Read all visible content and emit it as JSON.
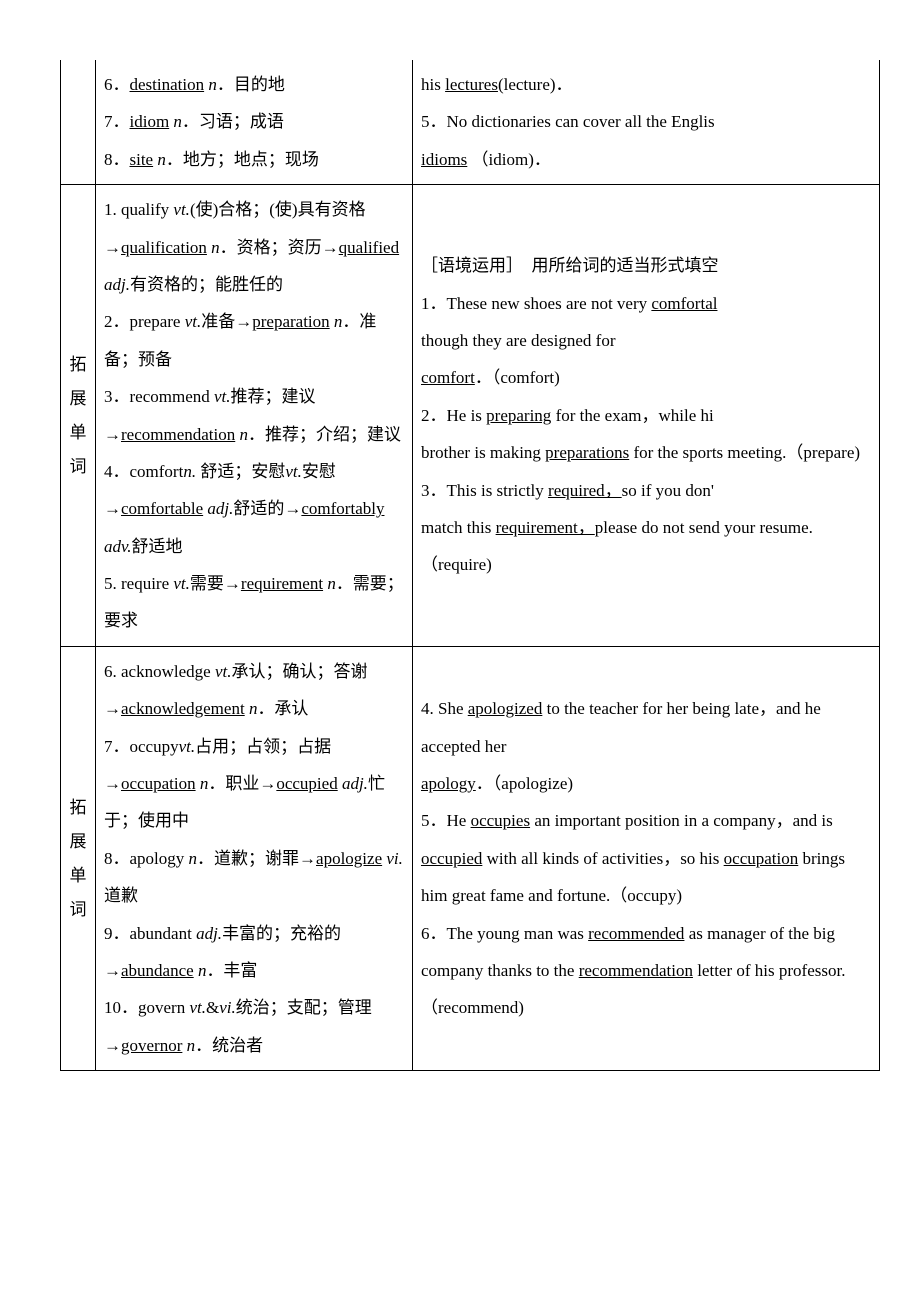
{
  "row1": {
    "left": {
      "l6a": "6．",
      "l6b": "destination",
      "l6c": " n",
      "l6d": "．目的地",
      "l7a": "7．",
      "l7b": "idiom",
      "l7c": " n",
      "l7d": "．习语；成语",
      "l8a": "8．",
      "l8b": "site",
      "l8c": " n",
      "l8d": "．地方；地点；现场"
    },
    "right": {
      "r4a": "his ",
      "r4b": "lectures",
      "r4c": "(lecture)．",
      "r5a": "5．No dictionaries can cover all the Englis",
      "r5b": "idioms",
      "r5c": " （idiom)．"
    }
  },
  "row2": {
    "label": "拓展单词",
    "left": {
      "l1a": "1. qualify ",
      "l1b": "vt.",
      "l1c": "(使)合格；(使)具有资格→",
      "l1d": "qualification",
      "l1e": " n",
      "l1f": "．资格；资历→",
      "l1g": "qualified",
      "l1h": " adj.",
      "l1i": "有资格的；能胜任的",
      "l2a": "2．prepare ",
      "l2b": "vt.",
      "l2c": "准备→",
      "l2d": "preparation",
      "l2e": " n",
      "l2f": "．准备；预备",
      "l3a": "3．recommend ",
      "l3b": "vt.",
      "l3c": "推荐；建议→",
      "l3d": "recommendation",
      "l3e": " n",
      "l3f": "．推荐；介绍；建议",
      "l4a": "4．comfort",
      "l4b": "n.",
      "l4c": " 舒适；安慰",
      "l4d": "vt.",
      "l4e": "安慰→",
      "l4f": "comfortable",
      "l4g": " adj.",
      "l4h": "舒适的→",
      "l4i": "comfortably",
      "l4j": " adv.",
      "l4k": "舒适地",
      "l5a": "5. require ",
      "l5b": "vt.",
      "l5c": "需要→",
      "l5d": "requirement",
      "l5e": " n",
      "l5f": "．需要；要求"
    },
    "right": {
      "hdr": "［语境运用］　用所给词的适当形式填空",
      "r1a": "1．These new shoes are not very ",
      "r1b": "comfortal",
      "r1c": "though they are designed for",
      "r1d": "comfort",
      "r1e": "．（comfort)",
      "r2a": "2．He is ",
      "r2b": "preparing",
      "r2c": " for the exam，while hi",
      "r2d": "brother is making ",
      "r2e": "preparations",
      "r2f": " for the sports meeting.（prepare)",
      "r3a": "3．This is strictly ",
      "r3b": "required，",
      "r3c": "so if you don'",
      "r3d": "match this ",
      "r3e": "requirement，",
      "r3f": "please do not send your resume.（require)"
    }
  },
  "row3": {
    "label": "拓展单词",
    "left": {
      "l6a": "6. acknowledge ",
      "l6b": "vt.",
      "l6c": "承认；确认；答谢→",
      "l6d": "acknowledgement",
      "l6e": " n",
      "l6f": "．承认",
      "l7a": "7．occupy",
      "l7b": "vt.",
      "l7c": "占用；占领；占据→",
      "l7d": "occupation",
      "l7e": " n",
      "l7f": "．职业→",
      "l7g": "occupied",
      "l7h": " adj.",
      "l7i": "忙于；使用中",
      "l8a": "8．apology ",
      "l8b": "n",
      "l8c": "．道歉；谢罪→",
      "l8d": "apologize",
      "l8e": " vi.",
      "l8f": "道歉",
      "l9a": "9．abundant ",
      "l9b": "adj.",
      "l9c": "丰富的；充裕的→",
      "l9d": "abundance",
      "l9e": " n",
      "l9f": "．丰富",
      "l10a": "10．govern ",
      "l10b": "vt.",
      "l10c": "&",
      "l10d": "vi.",
      "l10e": "统治；支配；管理→",
      "l10f": "governor",
      "l10g": " n",
      "l10h": "．统治者"
    },
    "right": {
      "r4a": "4. She ",
      "r4b": "apologized",
      "r4c": " to the teacher for her being late，and he accepted her",
      "r4d": "apology",
      "r4e": "．（apologize)",
      "r5a": "5．He ",
      "r5b": "occupies",
      "r5c": " an important position in a company，and is ",
      "r5d": "occupied",
      "r5e": " with all kinds of activities，so his ",
      "r5f": "occupation",
      "r5g": " brings him great fame and fortune.（occupy)",
      "r6a": "6．The young man was ",
      "r6b": "recommended",
      "r6c": " as manager of the big company thanks to the ",
      "r6d": "recommendation",
      "r6e": " letter of his professor.（recommend)"
    }
  }
}
